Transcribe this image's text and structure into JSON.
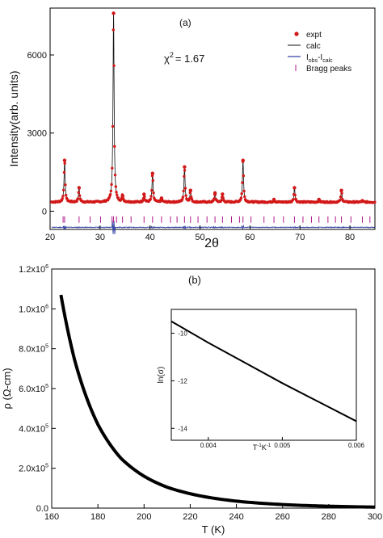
{
  "colors": {
    "expt": "#d21818",
    "calc": "#111111",
    "diff": "#2b3aa0",
    "bragg": "#b01a8a",
    "curve": "#000000"
  },
  "chart_data": [
    {
      "type": "scatter",
      "panel_label": "(a)",
      "xlabel": "2θ",
      "ylabel": "Intensity(arb. units)",
      "xlim": [
        20,
        85
      ],
      "ylim": [
        -700,
        7800
      ],
      "x_ticks": [
        20,
        30,
        40,
        50,
        60,
        70,
        80
      ],
      "y_ticks": [
        0,
        3000,
        6000
      ],
      "annotation": {
        "chi_symbol": "χ",
        "chi_exp": "2",
        "chi_value": "=  1.67"
      },
      "legend": {
        "placement": "top-right",
        "entries": {
          "expt": "expt",
          "calc": "calc",
          "diff_base": "I",
          "diff_sub1": "obs",
          "diff_mid": "-I",
          "diff_sub2": "calc",
          "bragg": "Bragg peaks"
        }
      },
      "background": 350,
      "diff_offset": -620,
      "bragg_level": -320,
      "peaks": [
        {
          "x": 22.9,
          "y": 1950
        },
        {
          "x": 25.8,
          "y": 900
        },
        {
          "x": 32.7,
          "y": 7600
        },
        {
          "x": 34.5,
          "y": 600
        },
        {
          "x": 38.8,
          "y": 650
        },
        {
          "x": 40.5,
          "y": 1450
        },
        {
          "x": 42.3,
          "y": 500
        },
        {
          "x": 46.9,
          "y": 1700
        },
        {
          "x": 48.1,
          "y": 800
        },
        {
          "x": 53.0,
          "y": 700
        },
        {
          "x": 54.5,
          "y": 650
        },
        {
          "x": 58.6,
          "y": 1950
        },
        {
          "x": 64.8,
          "y": 450
        },
        {
          "x": 68.9,
          "y": 900
        },
        {
          "x": 73.8,
          "y": 450
        },
        {
          "x": 78.3,
          "y": 800
        },
        {
          "x": 82.5,
          "y": 400
        }
      ],
      "bragg_positions": [
        22.6,
        22.9,
        25.8,
        28.0,
        30.1,
        32.4,
        32.7,
        33.3,
        34.5,
        36.2,
        38.8,
        40.5,
        42.3,
        44.1,
        45.4,
        46.9,
        48.1,
        49.6,
        51.4,
        53.0,
        54.5,
        56.3,
        57.9,
        58.6,
        60.2,
        62.8,
        64.8,
        66.7,
        68.9,
        70.6,
        72.3,
        73.8,
        75.6,
        77.1,
        78.3,
        80.2,
        82.5,
        84.0
      ]
    },
    {
      "type": "line",
      "panel_label": "(b)",
      "xlabel": "T (K)",
      "ylabel": "ρ (Ω-cm)",
      "xlim": [
        160,
        300
      ],
      "ylim": [
        0,
        1200000
      ],
      "x_ticks": [
        160,
        180,
        200,
        220,
        240,
        260,
        280,
        300
      ],
      "y_ticks": [
        {
          "value": 0,
          "label": "0.0"
        },
        {
          "value": 200000,
          "label": "2.0x10",
          "exp": "5"
        },
        {
          "value": 400000,
          "label": "4.0x10",
          "exp": "5"
        },
        {
          "value": 600000,
          "label": "6.0x10",
          "exp": "5"
        },
        {
          "value": 800000,
          "label": "8.0x10",
          "exp": "5"
        },
        {
          "value": 1000000,
          "label": "1.0x10",
          "exp": "6"
        },
        {
          "value": 1200000,
          "label": "1.2x10",
          "exp": "6"
        }
      ],
      "series": [
        {
          "x": [
            164,
            170,
            180,
            190,
            200,
            210,
            220,
            230,
            240,
            250,
            260,
            270,
            280,
            290,
            300
          ],
          "values": [
            1070000,
            740000,
            420000,
            250000,
            160000,
            105000,
            72000,
            50000,
            35000,
            25000,
            18000,
            13000,
            9500,
            7000,
            5000
          ]
        }
      ],
      "inset": {
        "type": "line",
        "xlabel_parts": [
          "T",
          "-1",
          "K",
          "-1"
        ],
        "ylabel": "ln(σ)",
        "xlim": [
          0.0035,
          0.006
        ],
        "ylim": [
          -14.5,
          -9.0
        ],
        "x_ticks": [
          0.004,
          0.005,
          0.006
        ],
        "y_ticks": [
          -10,
          -12,
          -14
        ],
        "series": [
          {
            "x": [
              0.0035,
              0.004,
              0.0045,
              0.005,
              0.0055,
              0.006
            ],
            "values": [
              -9.5,
              -10.4,
              -11.25,
              -12.1,
              -12.9,
              -13.7
            ]
          }
        ]
      }
    }
  ]
}
